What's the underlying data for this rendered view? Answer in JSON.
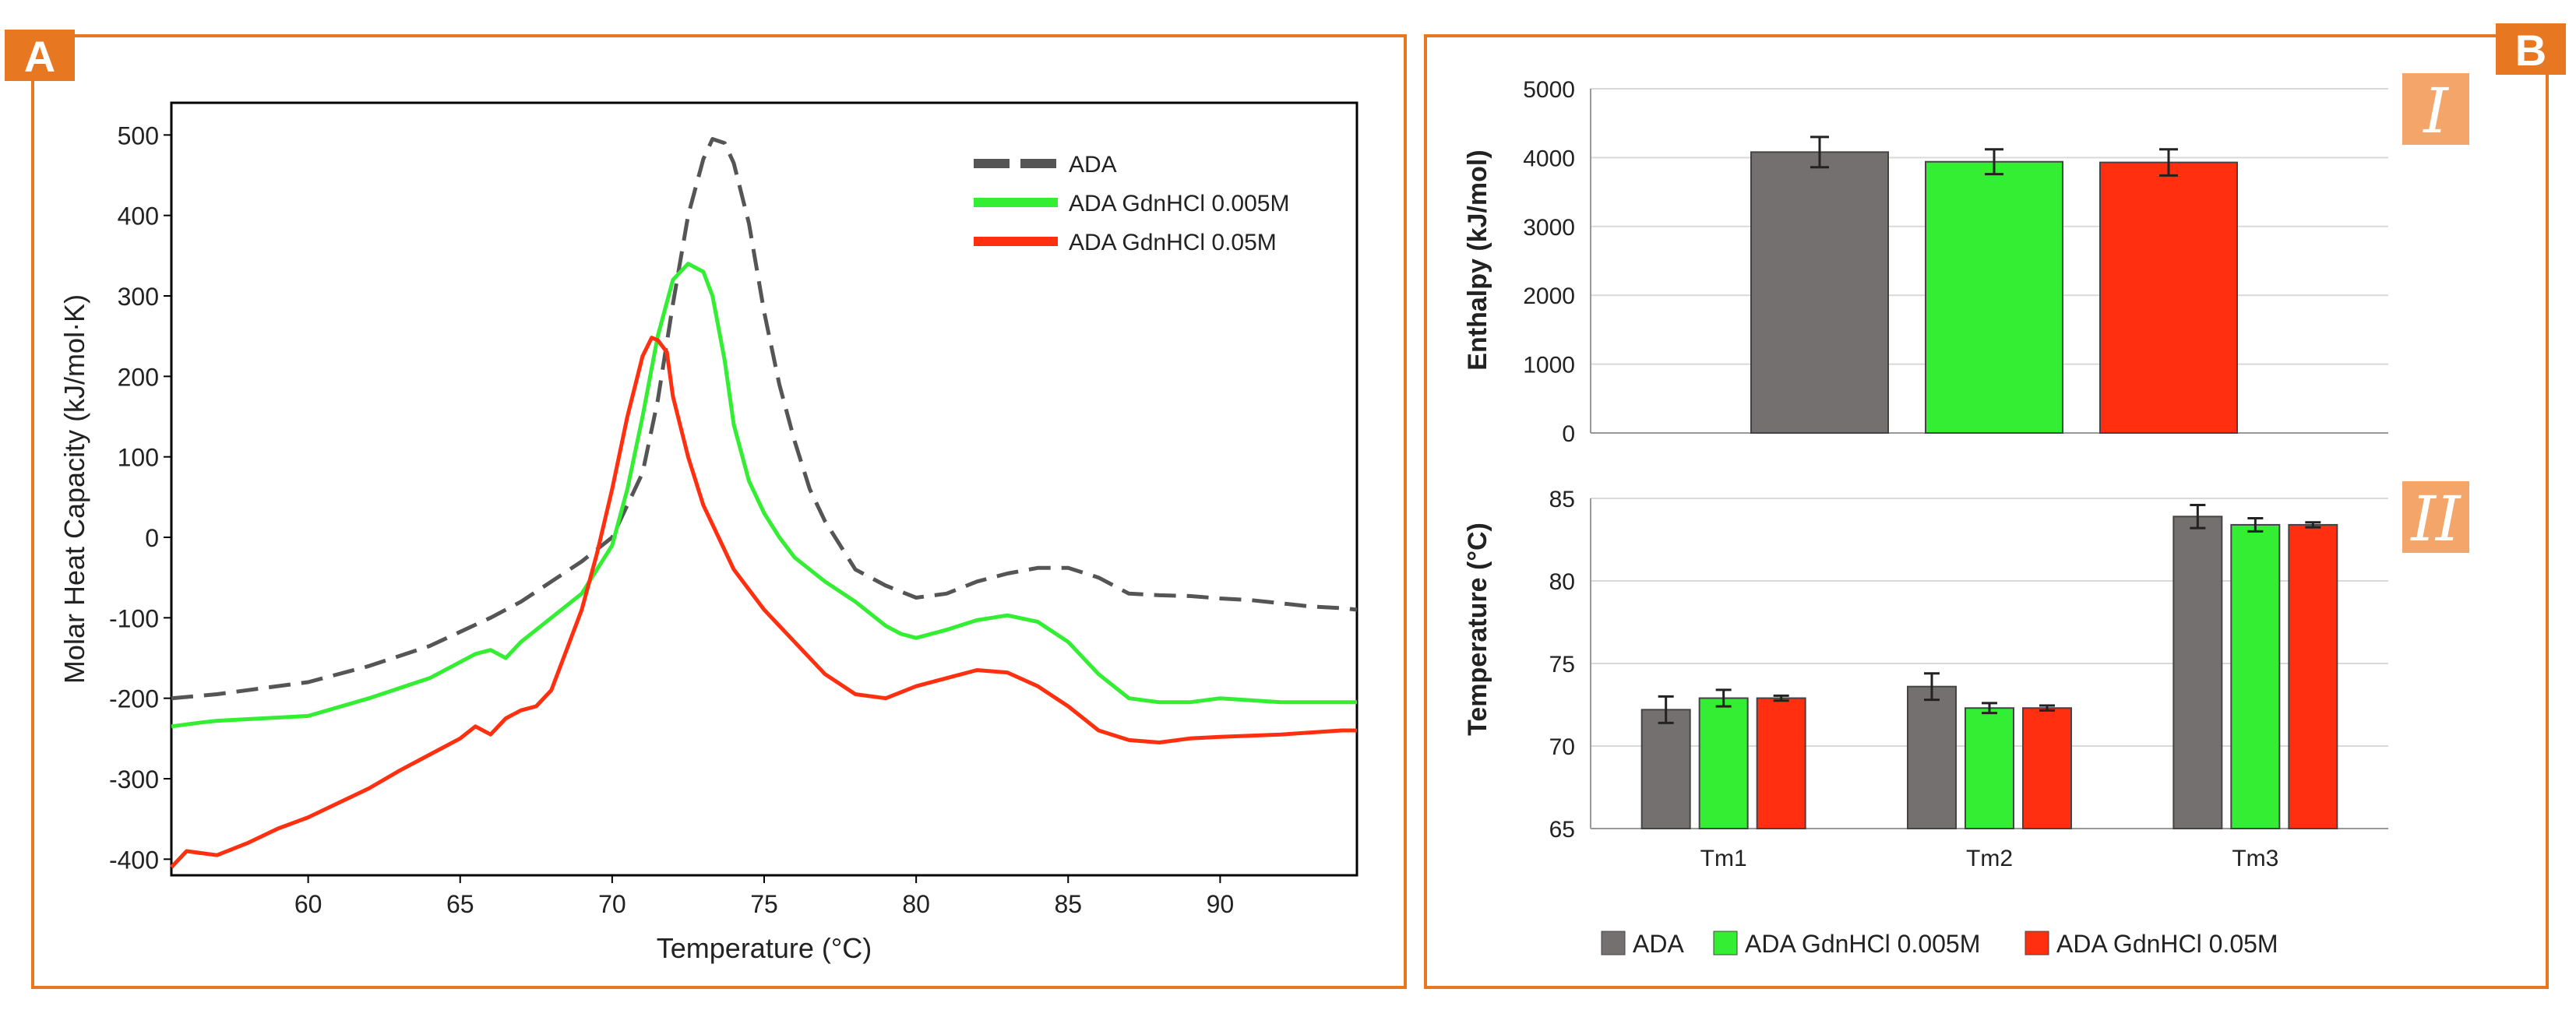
{
  "colors": {
    "border": "#e87722",
    "badge": "#e87722",
    "ada": "#555555",
    "ada_bar": "#747070",
    "green": "#33ee33",
    "red": "#ff2f0f",
    "roman": "#f4a56a"
  },
  "panelA": {
    "badge": "A",
    "chart_data": {
      "type": "line",
      "xlabel": "Temperature (°C)",
      "ylabel": "Molar Heat Capacity (kJ/mol·K)",
      "xlim": [
        55.5,
        94.5
      ],
      "ylim": [
        -420,
        540
      ],
      "xticks": [
        60,
        65,
        70,
        75,
        80,
        85,
        90
      ],
      "yticks": [
        -400,
        -300,
        -200,
        -100,
        0,
        100,
        200,
        300,
        400,
        500
      ],
      "legend": "top-right",
      "series": [
        {
          "name": "ADA",
          "color": "#555555",
          "dash": true,
          "x": [
            55.5,
            57,
            58,
            60,
            62,
            64,
            66,
            67,
            68,
            69,
            70,
            71,
            71.5,
            72,
            72.5,
            73,
            73.3,
            73.7,
            74,
            74.5,
            75,
            75.5,
            76,
            76.5,
            77,
            78,
            79,
            80,
            81,
            82,
            83,
            84,
            85,
            86,
            87,
            88,
            89,
            90,
            91,
            92,
            93,
            94,
            94.5
          ],
          "y": [
            -200,
            -195,
            -190,
            -180,
            -160,
            -135,
            -100,
            -80,
            -55,
            -30,
            0,
            80,
            170,
            290,
            400,
            470,
            495,
            490,
            465,
            390,
            280,
            190,
            120,
            60,
            20,
            -40,
            -60,
            -75,
            -70,
            -55,
            -45,
            -38,
            -38,
            -50,
            -70,
            -72,
            -73,
            -76,
            -78,
            -82,
            -86,
            -88,
            -90
          ]
        },
        {
          "name": "ADA GdnHCl 0.005M",
          "color": "#33ee33",
          "dash": false,
          "x": [
            55.5,
            56.5,
            57,
            58,
            59,
            60,
            62,
            64,
            65,
            65.5,
            66,
            66.5,
            67,
            68,
            69,
            70,
            70.5,
            71,
            71.5,
            72,
            72.5,
            73,
            73.3,
            73.7,
            74,
            74.5,
            75,
            75.5,
            76,
            77,
            78,
            79,
            79.5,
            80,
            81,
            82,
            83,
            84,
            85,
            86,
            87,
            88,
            89,
            90,
            92,
            94,
            94.5
          ],
          "y": [
            -235,
            -230,
            -228,
            -226,
            -224,
            -222,
            -200,
            -175,
            -155,
            -145,
            -140,
            -150,
            -130,
            -100,
            -70,
            -10,
            60,
            150,
            250,
            320,
            340,
            330,
            300,
            220,
            140,
            70,
            30,
            0,
            -25,
            -55,
            -80,
            -110,
            -120,
            -125,
            -115,
            -103,
            -97,
            -105,
            -130,
            -170,
            -200,
            -205,
            -205,
            -200,
            -205,
            -205,
            -205
          ]
        },
        {
          "name": "ADA GdnHCl 0.05M",
          "color": "#ff2f0f",
          "dash": false,
          "x": [
            55.5,
            56,
            57,
            58,
            59,
            60,
            61,
            62,
            63,
            64,
            65,
            65.5,
            66,
            66.5,
            67,
            67.5,
            68,
            68.5,
            69,
            69.5,
            70,
            70.5,
            71,
            71.3,
            71.5,
            71.8,
            72,
            72.5,
            73,
            73.5,
            74,
            75,
            76,
            77,
            78,
            79,
            80,
            81,
            82,
            83,
            84,
            85,
            86,
            87,
            88,
            89,
            90,
            92,
            94,
            94.5
          ],
          "y": [
            -410,
            -390,
            -395,
            -380,
            -362,
            -348,
            -330,
            -312,
            -290,
            -270,
            -250,
            -235,
            -245,
            -225,
            -215,
            -210,
            -190,
            -140,
            -90,
            -20,
            60,
            150,
            225,
            248,
            245,
            230,
            175,
            100,
            40,
            0,
            -40,
            -90,
            -130,
            -170,
            -195,
            -200,
            -185,
            -175,
            -165,
            -168,
            -185,
            -210,
            -240,
            -252,
            -255,
            -250,
            -248,
            -245,
            -240,
            -240
          ]
        }
      ]
    }
  },
  "panelB": {
    "badge": "B",
    "chartI": {
      "roman": "I",
      "chart_data": {
        "type": "bar",
        "ylabel": "Enthalpy (kJ/mol)",
        "ylim": [
          0,
          5000
        ],
        "yticks": [
          0,
          1000,
          2000,
          3000,
          4000,
          5000
        ],
        "grid": true,
        "series": [
          {
            "name": "ADA",
            "color": "#747070",
            "value": 4080,
            "error": 220
          },
          {
            "name": "ADA GdnHCl 0.005M",
            "color": "#33ee33",
            "value": 3940,
            "error": 180
          },
          {
            "name": "ADA GdnHCl 0.05M",
            "color": "#ff2f0f",
            "value": 3930,
            "error": 190
          }
        ]
      }
    },
    "chartII": {
      "roman": "II",
      "chart_data": {
        "type": "bar",
        "ylabel": "Temperature (°C)",
        "ylim": [
          65,
          85
        ],
        "yticks": [
          65,
          70,
          75,
          80,
          85
        ],
        "grid": true,
        "categories": [
          "Tm1",
          "Tm2",
          "Tm3"
        ],
        "series": [
          {
            "name": "ADA",
            "color": "#747070",
            "values": [
              72.2,
              73.6,
              83.9
            ],
            "errors": [
              0.8,
              0.8,
              0.7
            ]
          },
          {
            "name": "ADA GdnHCl 0.005M",
            "color": "#33ee33",
            "values": [
              72.9,
              72.3,
              83.4
            ],
            "errors": [
              0.5,
              0.3,
              0.4
            ]
          },
          {
            "name": "ADA GdnHCl 0.05M",
            "color": "#ff2f0f",
            "values": [
              72.9,
              72.3,
              83.4
            ],
            "errors": [
              0.15,
              0.15,
              0.15
            ]
          }
        ]
      }
    },
    "legend": [
      {
        "label": "ADA",
        "color": "#747070"
      },
      {
        "label": "ADA GdnHCl 0.005M",
        "color": "#33ee33"
      },
      {
        "label": "ADA GdnHCl 0.05M",
        "color": "#ff2f0f"
      }
    ]
  }
}
